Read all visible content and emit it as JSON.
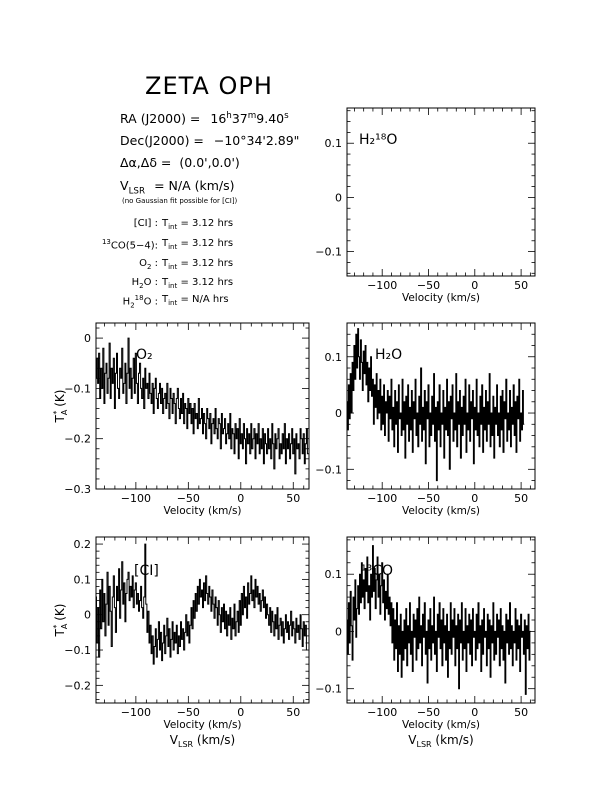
{
  "source": {
    "name": "ZETA OPH",
    "ra_label": "RA (J2000) =",
    "ra_h": "16",
    "ra_m": "37",
    "ra_s": "9.40",
    "dec_label": "Dec(J2000) =",
    "dec_value": "−10°34'2.89\"",
    "offset_label": "Δα,Δδ =",
    "offset_value": "(0.0',0.0')",
    "vlsr_value": "= N/A  (km/s)",
    "vlsr_note": "(no Gaussian fit possible for [CI])"
  },
  "integration": [
    {
      "species": "[CI] :",
      "value": "= 3.12 hrs"
    },
    {
      "species": "CO(5−4):",
      "iso": "13",
      "value": "= 3.12 hrs"
    },
    {
      "species": "O",
      "sub": "2",
      "tail": " :",
      "value": "= 3.12 hrs"
    },
    {
      "species": "H",
      "sub": "2",
      "tail": "O :",
      "value": "= 3.12 hrs"
    },
    {
      "species": "H",
      "sub": "2",
      "sup": "18",
      "tail": "O :",
      "value": "= N/A  hrs"
    }
  ],
  "tint_label": "T",
  "tint_sub": "int",
  "chart_data": [
    {
      "id": "h2-18o",
      "type": "line",
      "label": "H₂¹⁸O",
      "xlabel": "Velocity (km/s)",
      "ylabel": "",
      "xlim": [
        -138,
        65
      ],
      "ylim": [
        -0.145,
        0.165
      ],
      "xticks": [
        -100,
        -50,
        0,
        50
      ],
      "yticks": [
        0.1,
        0,
        -0.1
      ],
      "ytick_labels": [
        "0.1",
        "0",
        "−0.1"
      ],
      "x": [],
      "y": []
    },
    {
      "id": "o2",
      "type": "line",
      "label": "O₂",
      "xlabel": "Velocity (km/s)",
      "ylabel": "T*A (K)",
      "xlim": [
        -138,
        65
      ],
      "ylim": [
        -0.3,
        0.03
      ],
      "xticks": [
        -100,
        -50,
        0,
        50
      ],
      "yticks": [
        0,
        -0.1,
        -0.2,
        -0.3
      ],
      "ytick_labels": [
        "0",
        "−0.1",
        "−0.2",
        "−0.3"
      ],
      "x_start": -138,
      "x_step": 1,
      "y": [
        -0.08,
        -0.04,
        -0.09,
        -0.03,
        -0.12,
        -0.06,
        -0.1,
        -0.02,
        -0.13,
        -0.07,
        -0.05,
        -0.11,
        -0.08,
        -0.01,
        -0.12,
        -0.06,
        -0.09,
        -0.04,
        -0.14,
        -0.07,
        -0.03,
        -0.1,
        -0.12,
        -0.06,
        -0.08,
        -0.02,
        -0.11,
        -0.09,
        -0.05,
        -0.13,
        -0.07,
        0.0,
        -0.1,
        -0.06,
        -0.12,
        -0.08,
        -0.04,
        -0.11,
        -0.03,
        -0.09,
        -0.13,
        -0.07,
        -0.05,
        -0.1,
        -0.12,
        -0.08,
        -0.14,
        -0.06,
        -0.1,
        -0.09,
        -0.12,
        -0.07,
        -0.11,
        -0.13,
        -0.09,
        -0.15,
        -0.1,
        -0.08,
        -0.12,
        -0.14,
        -0.11,
        -0.09,
        -0.13,
        -0.1,
        -0.15,
        -0.12,
        -0.11,
        -0.14,
        -0.09,
        -0.13,
        -0.16,
        -0.1,
        -0.12,
        -0.15,
        -0.11,
        -0.13,
        -0.17,
        -0.12,
        -0.1,
        -0.14,
        -0.16,
        -0.12,
        -0.15,
        -0.11,
        -0.17,
        -0.13,
        -0.14,
        -0.18,
        -0.12,
        -0.15,
        -0.13,
        -0.17,
        -0.14,
        -0.19,
        -0.13,
        -0.16,
        -0.15,
        -0.18,
        -0.12,
        -0.17,
        -0.16,
        -0.14,
        -0.19,
        -0.15,
        -0.17,
        -0.2,
        -0.14,
        -0.16,
        -0.18,
        -0.15,
        -0.21,
        -0.17,
        -0.16,
        -0.19,
        -0.14,
        -0.18,
        -0.2,
        -0.16,
        -0.17,
        -0.22,
        -0.15,
        -0.19,
        -0.18,
        -0.16,
        -0.21,
        -0.19,
        -0.17,
        -0.2,
        -0.15,
        -0.22,
        -0.18,
        -0.19,
        -0.23,
        -0.17,
        -0.2,
        -0.18,
        -0.24,
        -0.16,
        -0.21,
        -0.19,
        -0.22,
        -0.17,
        -0.2,
        -0.25,
        -0.18,
        -0.21,
        -0.19,
        -0.23,
        -0.17,
        -0.22,
        -0.2,
        -0.18,
        -0.24,
        -0.19,
        -0.21,
        -0.17,
        -0.23,
        -0.2,
        -0.22,
        -0.18,
        -0.25,
        -0.19,
        -0.21,
        -0.23,
        -0.18,
        -0.22,
        -0.2,
        -0.24,
        -0.17,
        -0.21,
        -0.26,
        -0.19,
        -0.22,
        -0.2,
        -0.18,
        -0.24,
        -0.21,
        -0.23,
        -0.19,
        -0.22,
        -0.17,
        -0.25,
        -0.2,
        -0.22,
        -0.19,
        -0.24,
        -0.21,
        -0.18,
        -0.23,
        -0.2,
        -0.27,
        -0.19,
        -0.22,
        -0.21,
        -0.24,
        -0.18,
        -0.2,
        -0.23,
        -0.19,
        -0.25,
        -0.21,
        -0.18,
        -0.23
      ]
    },
    {
      "id": "h2o",
      "type": "line",
      "label": "H₂O",
      "xlabel": "Velocity (km/s)",
      "ylabel": "",
      "xlim": [
        -138,
        65
      ],
      "ylim": [
        -0.135,
        0.16
      ],
      "xticks": [
        -100,
        -50,
        0,
        50
      ],
      "yticks": [
        0.1,
        0,
        -0.1
      ],
      "ytick_labels": [
        "0.1",
        "0",
        "−0.1"
      ],
      "x_start": -138,
      "x_step": 1,
      "y": [
        0.02,
        -0.03,
        0.05,
        -0.01,
        0.07,
        0.0,
        0.09,
        0.04,
        0.12,
        0.06,
        0.14,
        0.08,
        0.15,
        0.1,
        0.06,
        0.13,
        0.09,
        0.04,
        0.11,
        0.07,
        0.12,
        0.05,
        0.09,
        0.02,
        0.08,
        0.04,
        0.1,
        0.03,
        0.06,
        -0.02,
        0.05,
        0.01,
        0.07,
        -0.01,
        0.04,
        0.0,
        0.06,
        -0.03,
        0.03,
        -0.02,
        0.05,
        -0.04,
        0.02,
        0.0,
        0.04,
        -0.05,
        0.03,
        -0.01,
        0.06,
        -0.03,
        0.01,
        -0.06,
        0.04,
        -0.02,
        0.02,
        -0.07,
        0.05,
        -0.01,
        0.0,
        -0.04,
        0.06,
        -0.03,
        0.02,
        -0.08,
        0.03,
        -0.02,
        0.05,
        -0.05,
        0.01,
        -0.03,
        0.04,
        -0.07,
        0.02,
        -0.01,
        0.06,
        -0.04,
        0.0,
        -0.06,
        0.03,
        -0.02,
        0.08,
        -0.05,
        0.01,
        -0.03,
        0.04,
        -0.09,
        0.02,
        -0.01,
        0.05,
        -0.06,
        0.0,
        -0.04,
        0.03,
        -0.02,
        0.07,
        -0.05,
        0.01,
        -0.12,
        0.02,
        -0.03,
        0.05,
        -0.06,
        0.0,
        -0.02,
        0.04,
        -0.08,
        0.01,
        -0.03,
        0.06,
        -0.04,
        0.02,
        -0.1,
        0.03,
        -0.01,
        0.05,
        -0.05,
        0.0,
        -0.03,
        0.07,
        -0.06,
        0.02,
        -0.02,
        0.04,
        -0.08,
        0.01,
        -0.04,
        0.03,
        -0.02,
        0.06,
        -0.07,
        0.0,
        -0.03,
        0.05,
        -0.05,
        0.02,
        -0.01,
        0.04,
        -0.09,
        0.01,
        -0.03,
        0.06,
        -0.04,
        0.0,
        -0.06,
        0.03,
        -0.02,
        0.05,
        -0.07,
        0.01,
        -0.03,
        0.04,
        -0.05,
        0.02,
        -0.02,
        0.07,
        -0.06,
        0.0,
        -0.04,
        0.03,
        -0.08,
        0.01,
        -0.02,
        0.05,
        -0.04,
        0.0,
        -0.06,
        0.03,
        -0.03,
        0.04,
        -0.07,
        0.02,
        -0.01,
        0.06,
        -0.05,
        0.0,
        -0.03,
        0.04,
        -0.06,
        0.01,
        -0.02,
        0.05,
        -0.04,
        0.02,
        -0.07,
        0.03,
        -0.01,
        0.06,
        -0.05,
        0.0,
        -0.03,
        0.04,
        -0.02
      ]
    },
    {
      "id": "ci",
      "type": "line",
      "label": "[CI]",
      "xlabel": "Velocity (km/s)",
      "xlabel2": "V_LSR (km/s)",
      "ylabel": "T*A (K)",
      "xlim": [
        -138,
        65
      ],
      "ylim": [
        -0.25,
        0.22
      ],
      "xticks": [
        -100,
        -50,
        0,
        50
      ],
      "yticks": [
        0.2,
        0.1,
        0,
        -0.1,
        -0.2
      ],
      "ytick_labels": [
        "0.2",
        "0.1",
        "0",
        "−0.1",
        "−0.2"
      ],
      "x_start": -138,
      "x_step": 1,
      "y": [
        0.05,
        -0.08,
        0.02,
        -0.12,
        0.07,
        -0.04,
        0.1,
        -0.02,
        0.06,
        -0.06,
        0.03,
        0.12,
        -0.03,
        0.08,
        0.01,
        -0.09,
        0.05,
        0.11,
        0.02,
        -0.05,
        0.08,
        0.04,
        0.13,
        -0.01,
        0.07,
        0.15,
        0.03,
        0.09,
        -0.02,
        0.06,
        0.1,
        0.12,
        0.04,
        0.08,
        0.05,
        0.11,
        0.02,
        0.07,
        0.09,
        0.03,
        0.06,
        0.01,
        0.04,
        0.08,
        0.02,
        -0.01,
        0.05,
        0.2,
        0.03,
        -0.05,
        0.01,
        -0.08,
        -0.03,
        -0.11,
        -0.06,
        -0.14,
        -0.09,
        -0.04,
        -0.12,
        -0.07,
        -0.02,
        -0.1,
        -0.05,
        -0.13,
        -0.08,
        -0.03,
        -0.11,
        -0.06,
        -0.01,
        -0.09,
        -0.04,
        -0.12,
        -0.07,
        -0.02,
        -0.1,
        -0.05,
        -0.08,
        -0.03,
        -0.11,
        -0.06,
        -0.09,
        -0.02,
        -0.07,
        -0.04,
        -0.1,
        -0.05,
        0.0,
        -0.06,
        -0.02,
        -0.08,
        -0.03,
        0.02,
        -0.04,
        0.04,
        -0.01,
        0.06,
        0.01,
        0.08,
        0.03,
        0.1,
        0.05,
        0.07,
        0.02,
        0.09,
        0.04,
        0.11,
        0.06,
        0.03,
        0.08,
        0.05,
        0.01,
        0.07,
        0.03,
        -0.01,
        0.05,
        0.02,
        -0.03,
        0.04,
        0.0,
        -0.05,
        0.02,
        -0.02,
        0.03,
        -0.04,
        0.01,
        -0.06,
        0.0,
        -0.03,
        0.02,
        -0.07,
        -0.01,
        -0.04,
        0.03,
        -0.06,
        -0.02,
        0.01,
        -0.05,
        0.04,
        -0.03,
        0.06,
        0.0,
        0.08,
        0.02,
        0.05,
        -0.01,
        0.09,
        0.03,
        0.06,
        0.11,
        0.04,
        0.07,
        0.02,
        0.1,
        0.05,
        0.08,
        0.03,
        0.06,
        0.01,
        0.04,
        0.07,
        0.02,
        0.05,
        -0.01,
        0.03,
        0.0,
        -0.03,
        0.02,
        -0.05,
        0.01,
        -0.02,
        -0.06,
        0.0,
        -0.04,
        0.02,
        -0.07,
        -0.03,
        -0.01,
        -0.06,
        -0.02,
        -0.08,
        -0.04,
        0.0,
        -0.05,
        -0.02,
        -0.07,
        -0.03,
        0.01,
        -0.06,
        -0.02,
        -0.04,
        -0.08,
        -0.01,
        -0.05,
        -0.03,
        -0.07,
        0.0,
        -0.04,
        -0.09,
        -0.02,
        -0.06,
        -0.03,
        -0.1
      ]
    },
    {
      "id": "13co",
      "type": "line",
      "label": "¹³CO",
      "xlabel": "Velocity (km/s)",
      "xlabel2": "V_LSR (km/s)",
      "ylabel": "",
      "xlim": [
        -138,
        65
      ],
      "ylim": [
        -0.125,
        0.165
      ],
      "xticks": [
        -100,
        -50,
        0,
        50
      ],
      "yticks": [
        0.1,
        0,
        -0.1
      ],
      "ytick_labels": [
        "0.1",
        "0",
        "−0.1"
      ],
      "x_start": -138,
      "x_step": 1,
      "y": [
        0.02,
        -0.04,
        0.05,
        -0.02,
        0.07,
        0.01,
        -0.05,
        0.06,
        0.02,
        0.09,
        -0.01,
        0.04,
        0.08,
        0.03,
        0.1,
        0.05,
        0.12,
        0.06,
        0.09,
        0.04,
        0.11,
        0.07,
        0.13,
        0.05,
        0.08,
        0.02,
        0.1,
        0.06,
        0.15,
        0.07,
        0.11,
        0.04,
        0.09,
        0.13,
        0.06,
        0.1,
        0.03,
        0.08,
        0.12,
        0.05,
        0.09,
        0.02,
        0.07,
        0.04,
        0.1,
        0.03,
        0.06,
        0.01,
        0.05,
        -0.02,
        0.04,
        -0.05,
        0.02,
        -0.03,
        0.05,
        -0.07,
        0.01,
        -0.04,
        0.03,
        -0.08,
        0.0,
        -0.05,
        0.02,
        -0.03,
        0.04,
        -0.06,
        0.01,
        -0.02,
        0.05,
        -0.04,
        0.0,
        -0.07,
        0.03,
        -0.01,
        0.02,
        -0.05,
        0.04,
        -0.03,
        0.06,
        -0.02,
        0.01,
        -0.06,
        0.03,
        -0.01,
        0.05,
        -0.04,
        0.0,
        -0.09,
        0.02,
        -0.03,
        0.04,
        -0.05,
        0.01,
        -0.02,
        0.06,
        -0.04,
        0.0,
        -0.07,
        0.03,
        -0.01,
        0.05,
        -0.03,
        0.02,
        -0.06,
        0.04,
        -0.02,
        0.01,
        -0.05,
        0.03,
        -0.08,
        0.0,
        -0.03,
        0.05,
        -0.04,
        0.02,
        -0.01,
        0.04,
        -0.06,
        0.01,
        -0.03,
        0.03,
        -0.1,
        0.02,
        -0.02,
        0.05,
        -0.05,
        0.0,
        -0.03,
        0.04,
        -0.07,
        0.01,
        -0.02,
        0.03,
        -0.04,
        0.02,
        -0.06,
        0.04,
        -0.01,
        0.0,
        -0.05,
        0.03,
        -0.03,
        0.05,
        -0.02,
        0.01,
        -0.07,
        0.02,
        -0.04,
        0.04,
        -0.01,
        0.0,
        -0.06,
        0.03,
        -0.03,
        0.02,
        -0.08,
        0.01,
        -0.02,
        0.05,
        -0.05,
        0.0,
        -0.04,
        0.03,
        -0.01,
        0.02,
        -0.06,
        0.04,
        -0.03,
        0.01,
        -0.05,
        0.0,
        -0.09,
        0.03,
        -0.02,
        0.02,
        -0.04,
        0.05,
        -0.03,
        0.01,
        -0.06,
        0.0,
        -0.02,
        0.04,
        -0.05,
        0.02,
        -0.03,
        0.01,
        -0.07,
        0.03,
        -0.01,
        0.0,
        -0.04,
        0.02,
        -0.11,
        0.01,
        -0.03,
        0.03,
        -0.05,
        0.0
      ]
    }
  ]
}
